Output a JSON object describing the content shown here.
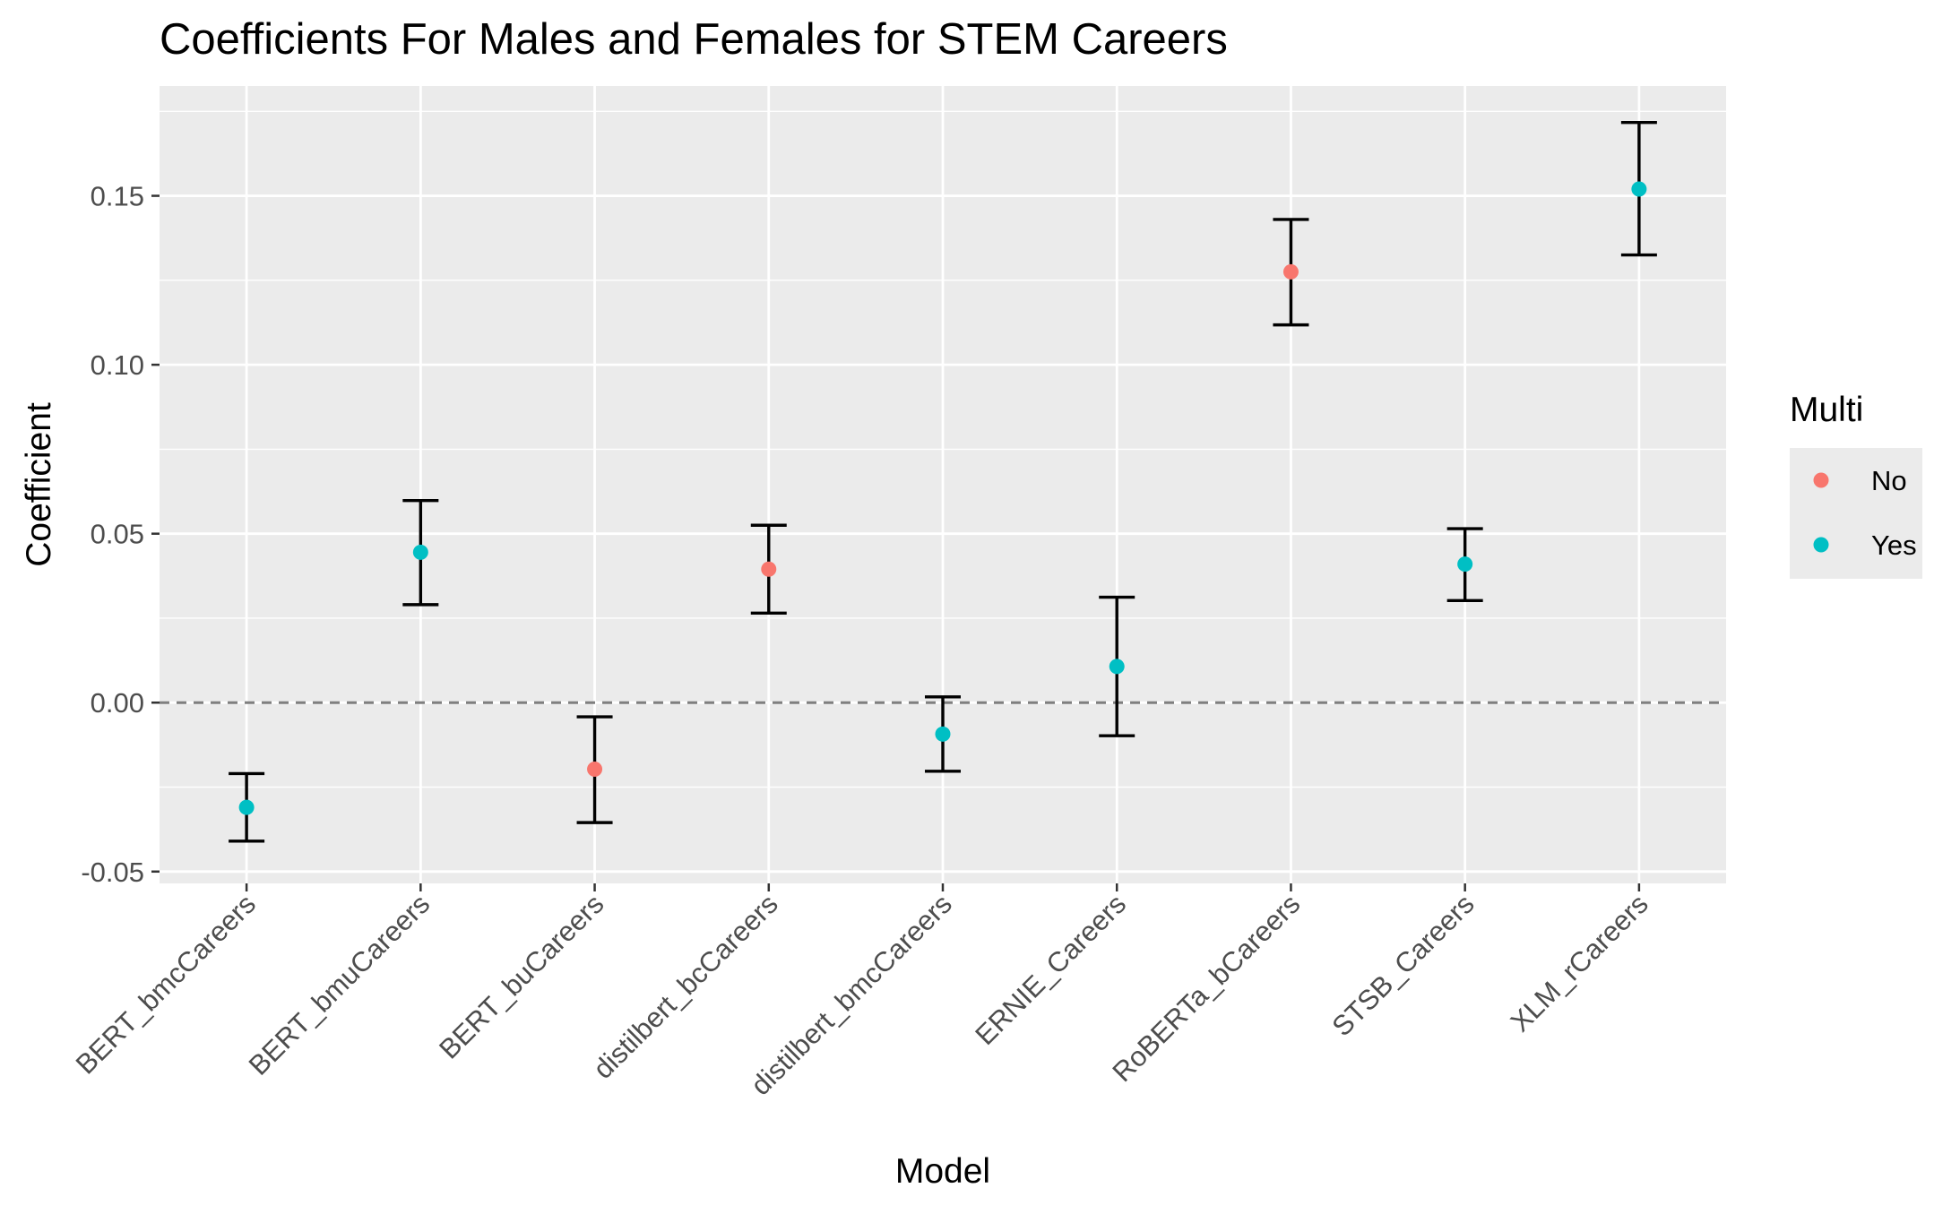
{
  "chart_data": {
    "type": "scatter",
    "title": "Coefficients For Males and Females for STEM Careers",
    "xlabel": "Model",
    "ylabel": "Coefficient",
    "categories": [
      "BERT_bmcCareers",
      "BERT_bmuCareers",
      "BERT_buCareers",
      "distilbert_bcCareers",
      "distilbert_bmcCareers",
      "ERNIE_Careers",
      "RoBERTa_bCareers",
      "STSB_Careers",
      "XLM_rCareers"
    ],
    "points": [
      {
        "model": "BERT_bmcCareers",
        "value": -0.031,
        "lower": -0.041,
        "upper": -0.021,
        "multi": "Yes"
      },
      {
        "model": "BERT_bmuCareers",
        "value": 0.0445,
        "lower": 0.029,
        "upper": 0.0598,
        "multi": "Yes"
      },
      {
        "model": "BERT_buCareers",
        "value": -0.0197,
        "lower": -0.0355,
        "upper": -0.0042,
        "multi": "No"
      },
      {
        "model": "distilbert_bcCareers",
        "value": 0.0395,
        "lower": 0.0265,
        "upper": 0.0525,
        "multi": "No"
      },
      {
        "model": "distilbert_bmcCareers",
        "value": -0.0093,
        "lower": -0.0203,
        "upper": 0.0017,
        "multi": "Yes"
      },
      {
        "model": "ERNIE_Careers",
        "value": 0.0107,
        "lower": -0.0098,
        "upper": 0.0312,
        "multi": "Yes"
      },
      {
        "model": "RoBERTa_bCareers",
        "value": 0.1275,
        "lower": 0.1118,
        "upper": 0.143,
        "multi": "No"
      },
      {
        "model": "STSB_Careers",
        "value": 0.041,
        "lower": 0.0302,
        "upper": 0.0515,
        "multi": "Yes"
      },
      {
        "model": "XLM_rCareers",
        "value": 0.152,
        "lower": 0.1325,
        "upper": 0.1717,
        "multi": "Yes"
      }
    ],
    "yticks": [
      -0.05,
      0.0,
      0.05,
      0.1,
      0.15
    ],
    "ytick_labels": [
      "-0.05",
      "0.00",
      "0.05",
      "0.10",
      "0.15"
    ],
    "ylim": [
      -0.0535,
      0.1825
    ],
    "reference_line": 0.0,
    "grid": true,
    "legend": {
      "title": "Multi",
      "placement": "right",
      "entries": [
        {
          "label": "No",
          "color": "#F8766D"
        },
        {
          "label": "Yes",
          "color": "#00BFC4"
        }
      ]
    },
    "colors": {
      "No": "#F8766D",
      "Yes": "#00BFC4",
      "panel_background": "#EBEBEB",
      "grid": "#FFFFFF",
      "error_bar": "#000000",
      "reference_line": "#7F7F7F"
    }
  }
}
